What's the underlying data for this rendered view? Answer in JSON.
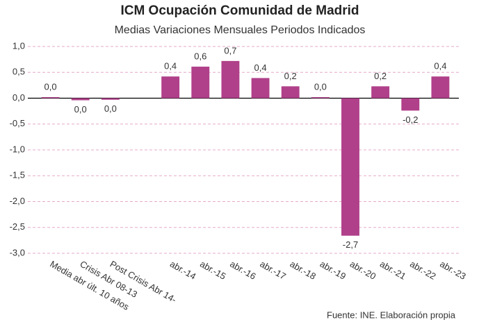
{
  "chart_data": {
    "type": "bar",
    "title": "ICM Ocupación Comunidad de Madrid",
    "subtitle": "Medias Variaciones Mensuales  Periodos Indicados",
    "source": "Fuente: INE. Elaboración propia",
    "categories": [
      "Media abr últ. 10 años",
      "Crisis Abr 08-13",
      "Post Crisis Abr 14-",
      null,
      "abr.-14",
      "abr.-15",
      "abr.-16",
      "abr.-17",
      "abr.-18",
      "abr.-19",
      "abr.-20",
      "abr.-21",
      "abr.-22",
      "abr.-23"
    ],
    "values": [
      0.02,
      -0.04,
      -0.03,
      null,
      0.42,
      0.61,
      0.72,
      0.39,
      0.23,
      0.02,
      -2.66,
      0.23,
      -0.24,
      0.42
    ],
    "value_labels": [
      "0,0",
      "0,0",
      "0,0",
      null,
      "0,4",
      "0,6",
      "0,7",
      "0,4",
      "0,2",
      "0,0",
      "-2,7",
      "0,2",
      "-0,2",
      "0,4"
    ],
    "color": "#b0408a",
    "ylim": [
      -3,
      1
    ],
    "yticks": [
      {
        "value": 1,
        "label": "1,0"
      },
      {
        "value": 0.5,
        "label": "0,5"
      },
      {
        "value": 0,
        "label": "0,0"
      },
      {
        "value": -0.5,
        "label": "-0,5"
      },
      {
        "value": -1,
        "label": "-1,0"
      },
      {
        "value": -1.5,
        "label": "-1,5"
      },
      {
        "value": -2,
        "label": "-2,0"
      },
      {
        "value": -2.5,
        "label": "-2,5"
      },
      {
        "value": -3,
        "label": "-3,0"
      }
    ],
    "grid": true
  }
}
